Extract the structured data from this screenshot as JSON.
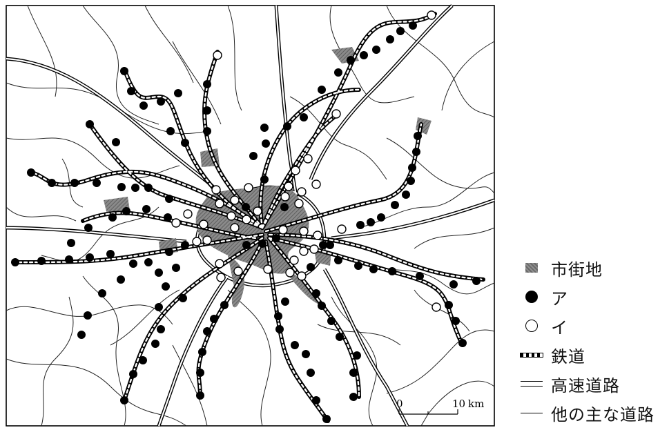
{
  "legend": {
    "urban": "市街地",
    "type_a": "ア",
    "type_i": "イ",
    "railway": "鉄道",
    "expressway": "高速道路",
    "other_road": "他の主な道路"
  },
  "scale": {
    "zero": "0",
    "ten": "10",
    "unit": "km"
  },
  "colors": {
    "urban": "#7d7d7d",
    "station_a": "#000000",
    "station_i": "#ffffff",
    "line": "#000000"
  },
  "icons": {
    "urban": "hatched-square",
    "type_a": "filled-circle",
    "type_i": "open-circle"
  }
}
